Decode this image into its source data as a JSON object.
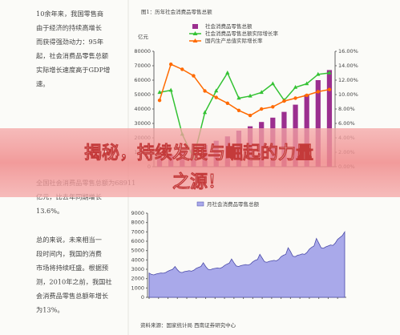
{
  "document": {
    "paragraphs": [
      [
        "10余年来，我国零售商",
        "由于经济的持续高增长",
        "而获得强劲动力：95年",
        "起，社会消费品零售总额",
        "实际增长速度高于GDP增",
        "速。"
      ],
      [
        "全国社会消费品零售总额为68911",
        "亿元，比去年同期增长",
        "13.6%。"
      ],
      [
        "总的来说，未来相当一",
        "段时间内，我国的消费",
        "市场将持续旺盛。根据预",
        "测，2010年之前，我国社",
        "会消费品零售总额年增长",
        "为13%。"
      ]
    ],
    "source": "资料来源：国家统计局  西南证券研究中心",
    "banner": [
      "揭秘，持续发展与崛起的力量",
      "之源！"
    ]
  },
  "chart_data": [
    {
      "type": "combo",
      "title": "图1：历年社会消费品零售总额",
      "unit": "亿元",
      "categories": [
        null,
        null,
        null,
        null,
        null,
        null,
        null,
        null,
        null,
        null,
        null,
        null,
        null,
        null,
        null,
        null
      ],
      "series": [
        {
          "name": "社会消费品零售总额",
          "color": "#9b2f8f",
          "kind": "bar",
          "values": [
            7000,
            8500,
            10000,
            12000,
            15000,
            18000,
            21000,
            25000,
            28000,
            31000,
            34000,
            38000,
            43000,
            50000,
            60000,
            67000
          ]
        },
        {
          "name": "社会消费品零售总额实际增长率",
          "color": "#33c233",
          "kind": "line",
          "axis": "y2",
          "values": [
            10.3,
            10.6,
            4.5,
            1.2,
            7.5,
            10.5,
            13.0,
            9.5,
            9.8,
            10.3,
            11.5,
            9.2,
            11.0,
            11.5,
            12.8,
            13.0
          ]
        },
        {
          "name": "国内生产总值实际增长率",
          "color": "#ff6a00",
          "kind": "line",
          "axis": "y2",
          "values": [
            9.2,
            14.2,
            13.5,
            12.6,
            10.5,
            9.6,
            8.8,
            7.8,
            7.1,
            8.0,
            8.3,
            9.1,
            9.5,
            9.9,
            10.4,
            10.7
          ]
        }
      ],
      "ylim": [
        0,
        80000
      ],
      "yticks": [
        0,
        10000,
        20000,
        30000,
        40000,
        50000,
        60000,
        70000,
        80000
      ],
      "y2lim": [
        0,
        16
      ],
      "y2ticks": [
        {
          "value": 0,
          "label": "0.00%"
        },
        {
          "value": 2,
          "label": "2.00%"
        },
        {
          "value": 4,
          "label": "4.00%"
        },
        {
          "value": 6,
          "label": "6.00%"
        },
        {
          "value": 8,
          "label": "8.00%"
        },
        {
          "value": 10,
          "label": "10.00%"
        },
        {
          "value": 12,
          "label": "12.00%"
        },
        {
          "value": 14,
          "label": "14.00%"
        },
        {
          "value": 16,
          "label": "16.00%"
        }
      ]
    },
    {
      "type": "area",
      "series": [
        {
          "name": "月社会消费品零售总额",
          "color": "#4a4aa8",
          "fill": "#a9a9ea",
          "values": [
            2600,
            2450,
            2400,
            2500,
            2550,
            2600,
            2580,
            2650,
            2800,
            2900,
            3000,
            3300,
            2950,
            2700,
            2650,
            2750,
            2800,
            2850,
            2800,
            2900,
            3100,
            3200,
            3300,
            3700,
            3300,
            3000,
            2950,
            3050,
            3100,
            3150,
            3100,
            3200,
            3400,
            3550,
            3650,
            4100,
            3700,
            3350,
            3300,
            3400,
            3450,
            3500,
            3450,
            3550,
            3800,
            3950,
            4050,
            4600,
            4200,
            3800,
            3750,
            3850,
            3900,
            3950,
            3900,
            4050,
            4350,
            4500,
            4600,
            5300,
            4900,
            4400,
            4350,
            4500,
            4550,
            4650,
            4600,
            4800,
            5150,
            5350,
            5500,
            6300,
            5800,
            5300,
            5250,
            5400,
            5500,
            5600,
            5550,
            5800,
            6200,
            6400,
            6600,
            7000
          ]
        }
      ],
      "ylim": [
        0,
        9000
      ],
      "yticks": [
        0,
        1000,
        2000,
        3000,
        4000,
        5000,
        6000,
        7000,
        8000,
        9000
      ]
    }
  ]
}
